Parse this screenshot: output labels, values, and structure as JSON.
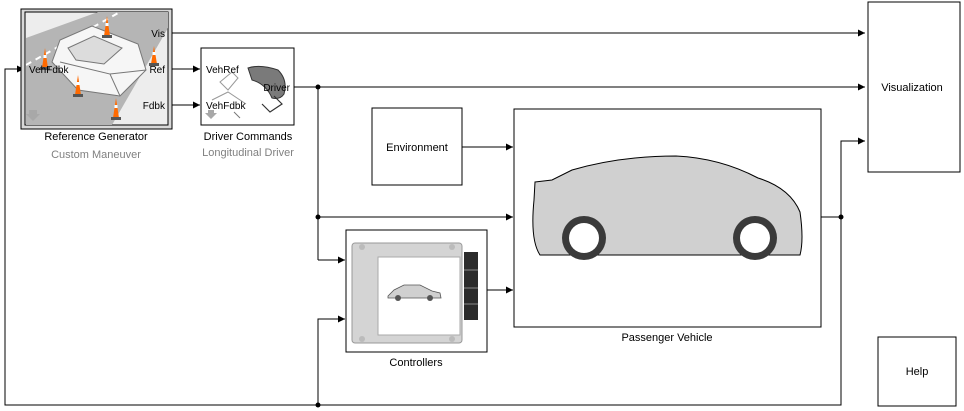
{
  "blocks": {
    "reference_generator": {
      "name": "Reference Generator",
      "subtitle": "Custom Maneuver",
      "ports_in": [
        "VehFdbk"
      ],
      "ports_out": [
        "Vis",
        "Ref",
        "Fdbk"
      ]
    },
    "driver_commands": {
      "name": "Driver Commands",
      "subtitle": "Longitudinal Driver",
      "ports_in": [
        "VehRef",
        "VehFdbk"
      ],
      "ports_out": [
        "Driver"
      ]
    },
    "environment": {
      "name": "Environment"
    },
    "passenger_vehicle": {
      "name": "Passenger Vehicle"
    },
    "controllers": {
      "name": "Controllers"
    },
    "visualization": {
      "name": "Visualization"
    },
    "help": {
      "name": "Help"
    }
  },
  "colors": {
    "vehicle_body": "#d0d0d0",
    "wheel": "#3a3a3a",
    "ecu_body": "#d4d4d4"
  }
}
